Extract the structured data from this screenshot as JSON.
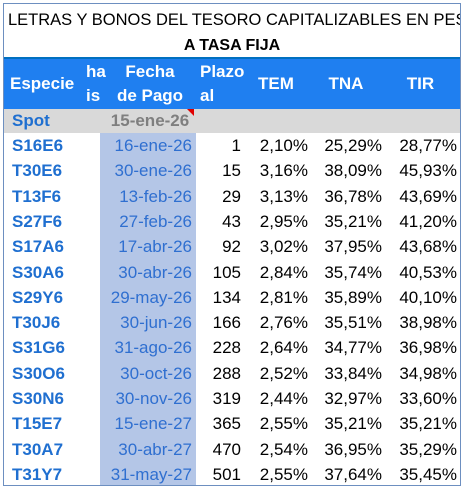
{
  "title_line1": "LETRAS Y BONOS DEL TESORO CAPITALIZABLES EN PESOS -",
  "title_line2": "A TASA FIJA",
  "headers": {
    "especie": "Especie",
    "hais_1": "ha",
    "hais_2": "is",
    "fecha_1": "Fecha",
    "fecha_2": "de Pago",
    "plazo_1": "Plazo",
    "plazo_2": "al",
    "tem": "TEM",
    "tna": "TNA",
    "tir": "TIR"
  },
  "spot": {
    "label": "Spot",
    "date": "15-ene-26"
  },
  "rows": [
    {
      "especie": "S16E6",
      "fecha": "16-ene-26",
      "plazo": "1",
      "tem": "2,10%",
      "tna": "25,29%",
      "tir": "28,77%"
    },
    {
      "especie": "T30E6",
      "fecha": "30-ene-26",
      "plazo": "15",
      "tem": "3,16%",
      "tna": "38,09%",
      "tir": "45,93%"
    },
    {
      "especie": "T13F6",
      "fecha": "13-feb-26",
      "plazo": "29",
      "tem": "3,13%",
      "tna": "36,78%",
      "tir": "43,69%"
    },
    {
      "especie": "S27F6",
      "fecha": "27-feb-26",
      "plazo": "43",
      "tem": "2,95%",
      "tna": "35,21%",
      "tir": "41,20%"
    },
    {
      "especie": "S17A6",
      "fecha": "17-abr-26",
      "plazo": "92",
      "tem": "3,02%",
      "tna": "37,95%",
      "tir": "43,68%"
    },
    {
      "especie": "S30A6",
      "fecha": "30-abr-26",
      "plazo": "105",
      "tem": "2,84%",
      "tna": "35,74%",
      "tir": "40,53%"
    },
    {
      "especie": "S29Y6",
      "fecha": "29-may-26",
      "plazo": "134",
      "tem": "2,81%",
      "tna": "35,89%",
      "tir": "40,10%"
    },
    {
      "especie": "T30J6",
      "fecha": "30-jun-26",
      "plazo": "166",
      "tem": "2,76%",
      "tna": "35,51%",
      "tir": "38,98%"
    },
    {
      "especie": "S31G6",
      "fecha": "31-ago-26",
      "plazo": "228",
      "tem": "2,64%",
      "tna": "34,77%",
      "tir": "36,98%"
    },
    {
      "especie": "S30O6",
      "fecha": "30-oct-26",
      "plazo": "288",
      "tem": "2,52%",
      "tna": "33,84%",
      "tir": "34,98%"
    },
    {
      "especie": "S30N6",
      "fecha": "30-nov-26",
      "plazo": "319",
      "tem": "2,44%",
      "tna": "32,97%",
      "tir": "33,60%"
    },
    {
      "especie": "T15E7",
      "fecha": "15-ene-27",
      "plazo": "365",
      "tem": "2,55%",
      "tna": "35,21%",
      "tir": "35,21%"
    },
    {
      "especie": "T30A7",
      "fecha": "30-abr-27",
      "plazo": "470",
      "tem": "2,54%",
      "tna": "36,95%",
      "tir": "35,29%"
    },
    {
      "especie": "T31Y7",
      "fecha": "31-may-27",
      "plazo": "501",
      "tem": "2,55%",
      "tna": "37,64%",
      "tir": "35,45%"
    }
  ]
}
